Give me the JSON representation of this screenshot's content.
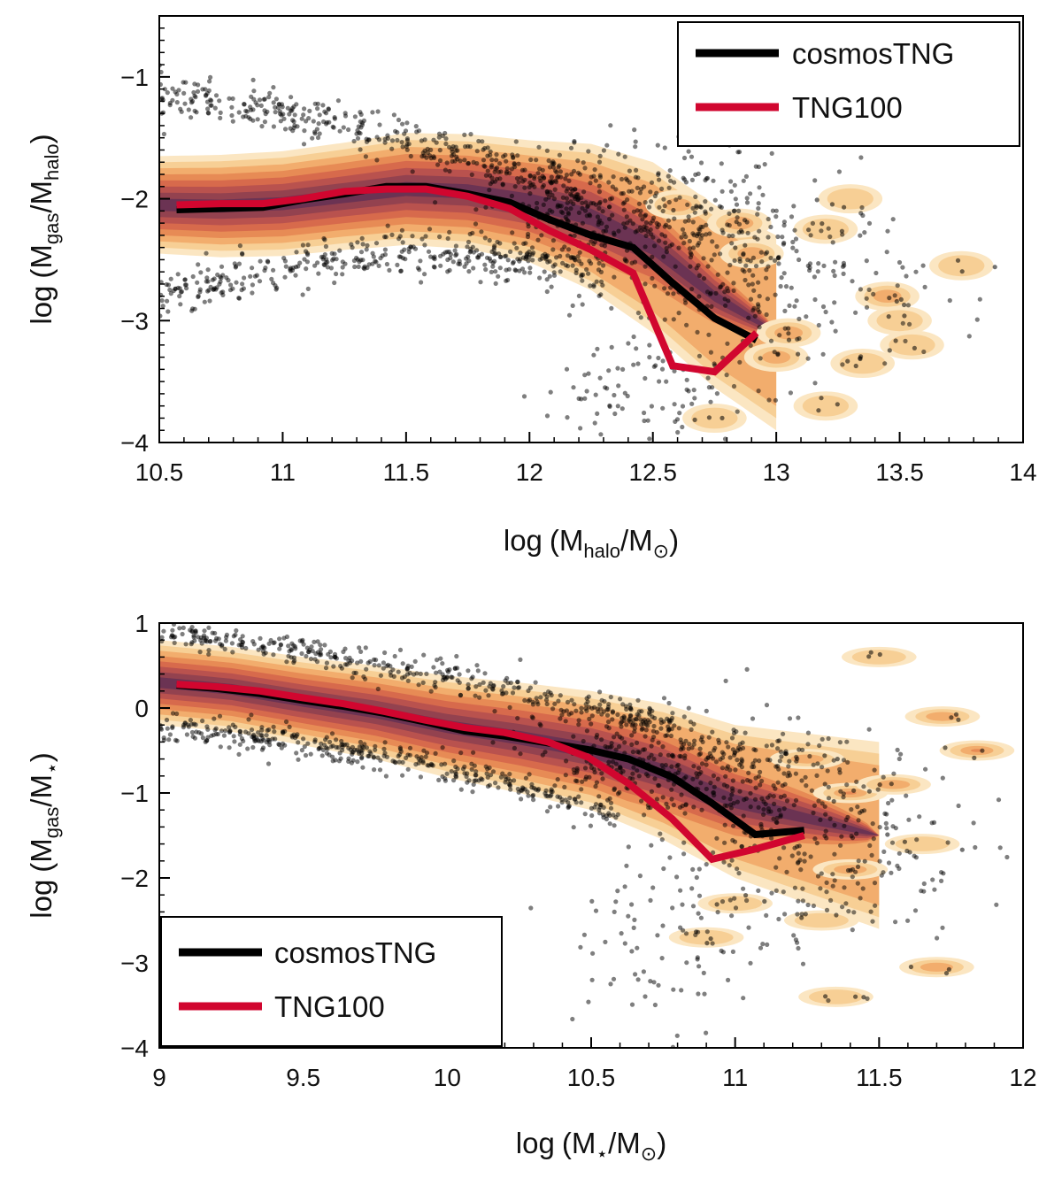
{
  "chart_data": [
    {
      "type": "scatter",
      "id": "top",
      "xlabel": "log (M_halo/M_⊙)",
      "ylabel": "log (M_gas/M_halo)",
      "xlim": [
        10.5,
        14
      ],
      "ylim": [
        -4,
        -0.5
      ],
      "xticks": [
        10.5,
        11,
        11.5,
        12,
        12.5,
        13,
        13.5,
        14
      ],
      "xtick_labels": [
        "10.5",
        "11",
        "11.5",
        "12",
        "12.5",
        "13",
        "13.5",
        "14"
      ],
      "yticks": [
        -4,
        -3,
        -2,
        -1
      ],
      "ytick_labels": [
        "−4",
        "−3",
        "−2",
        "−1"
      ],
      "legend": {
        "position": "top-right",
        "entries": [
          "cosmosTNG",
          "TNG100"
        ]
      },
      "series": [
        {
          "name": "cosmosTNG",
          "color": "#000000",
          "x": [
            10.57,
            10.75,
            10.92,
            11.08,
            11.25,
            11.42,
            11.58,
            11.75,
            11.92,
            12.08,
            12.25,
            12.42,
            12.58,
            12.75,
            12.92
          ],
          "y": [
            -2.09,
            -2.08,
            -2.07,
            -2.01,
            -1.96,
            -1.9,
            -1.9,
            -1.96,
            -2.03,
            -2.17,
            -2.3,
            -2.4,
            -2.69,
            -2.98,
            -3.16
          ]
        },
        {
          "name": "TNG100",
          "color": "#d1062f",
          "x": [
            10.57,
            10.75,
            10.92,
            11.08,
            11.25,
            11.42,
            11.58,
            11.75,
            11.92,
            12.08,
            12.25,
            12.42,
            12.58,
            12.75,
            12.92
          ],
          "y": [
            -2.05,
            -2.04,
            -2.04,
            -2.0,
            -1.94,
            -1.92,
            -1.92,
            -1.98,
            -2.08,
            -2.26,
            -2.42,
            -2.61,
            -3.37,
            -3.42,
            -3.1
          ]
        }
      ],
      "density_ridge": {
        "x": [
          10.5,
          10.75,
          11.0,
          11.25,
          11.5,
          11.75,
          12.0,
          12.25,
          12.5,
          12.75,
          13.0
        ],
        "center": [
          -2.05,
          -2.06,
          -2.04,
          -1.98,
          -1.92,
          -1.94,
          -2.02,
          -2.15,
          -2.4,
          -2.8,
          -3.1
        ],
        "halfwidth": [
          0.4,
          0.42,
          0.43,
          0.44,
          0.46,
          0.47,
          0.5,
          0.6,
          0.7,
          0.75,
          0.8
        ]
      },
      "density_blobs": [
        [
          12.6,
          -2.05,
          2
        ],
        [
          12.9,
          -2.45,
          2
        ],
        [
          13.2,
          -2.25,
          1
        ],
        [
          13.45,
          -2.8,
          2
        ],
        [
          13.5,
          -3.0,
          1
        ],
        [
          13.0,
          -3.3,
          2
        ],
        [
          13.2,
          -3.7,
          1
        ],
        [
          12.75,
          -3.8,
          1
        ],
        [
          13.35,
          -3.35,
          1
        ],
        [
          13.75,
          -2.55,
          1
        ],
        [
          13.05,
          -3.1,
          2
        ],
        [
          13.55,
          -3.2,
          1
        ],
        [
          13.3,
          -2.0,
          1
        ],
        [
          12.85,
          -2.2,
          2
        ]
      ],
      "scatter_bands": {
        "upper": [
          [
            10.5,
            -1.15
          ],
          [
            11.0,
            -1.3
          ],
          [
            11.5,
            -1.5
          ],
          [
            11.9,
            -1.75
          ],
          [
            12.2,
            -1.95
          ]
        ],
        "lower": [
          [
            10.5,
            -2.8
          ],
          [
            11.0,
            -2.6
          ],
          [
            11.5,
            -2.42
          ],
          [
            12.0,
            -2.5
          ],
          [
            12.3,
            -2.6
          ]
        ],
        "cloud": [
          [
            12.2,
            -2.1,
            0.2,
            0.3
          ],
          [
            12.6,
            -2.2,
            0.25,
            0.35
          ],
          [
            13.0,
            -2.7,
            0.3,
            0.4
          ]
        ],
        "tail": [
          [
            12.35,
            -3.6,
            0.15,
            0.3
          ],
          [
            12.6,
            -3.6,
            0.2,
            0.3
          ]
        ]
      }
    },
    {
      "type": "scatter",
      "id": "bottom",
      "xlabel": "log (M_⋆/M_⊙)",
      "ylabel": "log (M_gas/M_⋆)",
      "xlim": [
        9,
        12
      ],
      "ylim": [
        -4,
        1
      ],
      "xticks": [
        9,
        9.5,
        10,
        10.5,
        11,
        11.5,
        12
      ],
      "xtick_labels": [
        "9",
        "9.5",
        "10",
        "10.5",
        "11",
        "11.5",
        "12"
      ],
      "yticks": [
        -4,
        -3,
        -2,
        -1,
        0,
        1
      ],
      "ytick_labels": [
        "−4",
        "−3",
        "−2",
        "−1",
        "0",
        "1"
      ],
      "legend": {
        "position": "bottom-left",
        "entries": [
          "cosmosTNG",
          "TNG100"
        ]
      },
      "series": [
        {
          "name": "cosmosTNG",
          "color": "#000000",
          "x": [
            9.06,
            9.2,
            9.35,
            9.5,
            9.64,
            9.78,
            9.92,
            10.06,
            10.2,
            10.35,
            10.49,
            10.63,
            10.78,
            10.92,
            11.07,
            11.24
          ],
          "y": [
            0.27,
            0.23,
            0.17,
            0.09,
            0.02,
            -0.06,
            -0.16,
            -0.27,
            -0.33,
            -0.41,
            -0.49,
            -0.6,
            -0.81,
            -1.12,
            -1.49,
            -1.44
          ]
        },
        {
          "name": "TNG100",
          "color": "#d1062f",
          "x": [
            9.06,
            9.2,
            9.35,
            9.5,
            9.64,
            9.78,
            9.92,
            10.06,
            10.2,
            10.35,
            10.49,
            10.63,
            10.78,
            10.92,
            11.07,
            11.24
          ],
          "y": [
            0.28,
            0.25,
            0.2,
            0.12,
            0.05,
            -0.04,
            -0.14,
            -0.23,
            -0.29,
            -0.4,
            -0.58,
            -0.89,
            -1.3,
            -1.78,
            -1.66,
            -1.5
          ]
        }
      ],
      "density_ridge": {
        "x": [
          9.0,
          9.25,
          9.5,
          9.75,
          10.0,
          10.25,
          10.5,
          10.75,
          11.0,
          11.25,
          11.5
        ],
        "center": [
          0.3,
          0.22,
          0.08,
          -0.05,
          -0.22,
          -0.35,
          -0.5,
          -0.75,
          -1.1,
          -1.3,
          -1.5
        ],
        "halfwidth": [
          0.5,
          0.5,
          0.52,
          0.55,
          0.6,
          0.65,
          0.7,
          0.8,
          0.9,
          1.0,
          1.1
        ]
      },
      "density_blobs": [
        [
          11.4,
          -1.0,
          3
        ],
        [
          11.55,
          -0.9,
          2
        ],
        [
          11.72,
          -0.1,
          2
        ],
        [
          11.84,
          -0.5,
          3
        ],
        [
          11.5,
          0.6,
          1
        ],
        [
          11.7,
          -3.05,
          2
        ],
        [
          11.4,
          -1.9,
          2
        ],
        [
          11.25,
          -0.6,
          2
        ],
        [
          11.0,
          -2.3,
          1
        ],
        [
          10.9,
          -2.7,
          1
        ],
        [
          11.3,
          -2.5,
          1
        ],
        [
          11.65,
          -1.6,
          1
        ],
        [
          11.35,
          -3.4,
          1
        ]
      ],
      "scatter_bands": {
        "upper": [
          [
            9.0,
            0.9
          ],
          [
            9.5,
            0.65
          ],
          [
            10.0,
            0.35
          ],
          [
            10.5,
            0.0
          ],
          [
            10.8,
            -0.25
          ]
        ],
        "lower": [
          [
            9.0,
            -0.2
          ],
          [
            9.5,
            -0.4
          ],
          [
            10.0,
            -0.7
          ],
          [
            10.4,
            -1.05
          ],
          [
            10.6,
            -1.25
          ]
        ],
        "cloud": [
          [
            10.65,
            -0.5,
            0.2,
            0.3
          ],
          [
            10.95,
            -0.8,
            0.25,
            0.35
          ],
          [
            11.3,
            -1.6,
            0.25,
            0.6
          ]
        ],
        "tail": [
          [
            10.65,
            -2.8,
            0.15,
            0.8
          ],
          [
            10.85,
            -2.6,
            0.15,
            0.7
          ]
        ]
      }
    }
  ]
}
